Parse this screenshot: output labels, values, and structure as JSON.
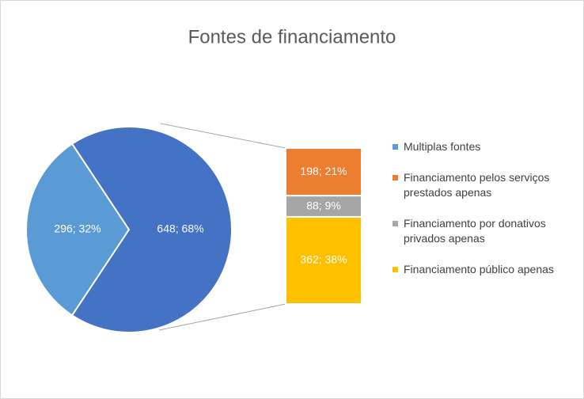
{
  "chart_data": {
    "type": "bar-of-pie",
    "title": "Fontes de financiamento",
    "categories": [
      "Multiplas fontes",
      "Financiamento pelos serviços prestados apenas",
      "Financiamento por donativos privados apenas",
      "Financiamento público apenas"
    ],
    "values": [
      296,
      198,
      88,
      362
    ],
    "value_labels": [
      "296; 32%",
      "198; 21%",
      "88; 9%",
      "362; 38%"
    ],
    "colors": [
      "#5b9bd5",
      "#ed7d31",
      "#a5a5a5",
      "#ffc000"
    ],
    "other_value": 648,
    "other_label": "648; 68%",
    "other_color": "#4472c4",
    "legend": "right"
  }
}
